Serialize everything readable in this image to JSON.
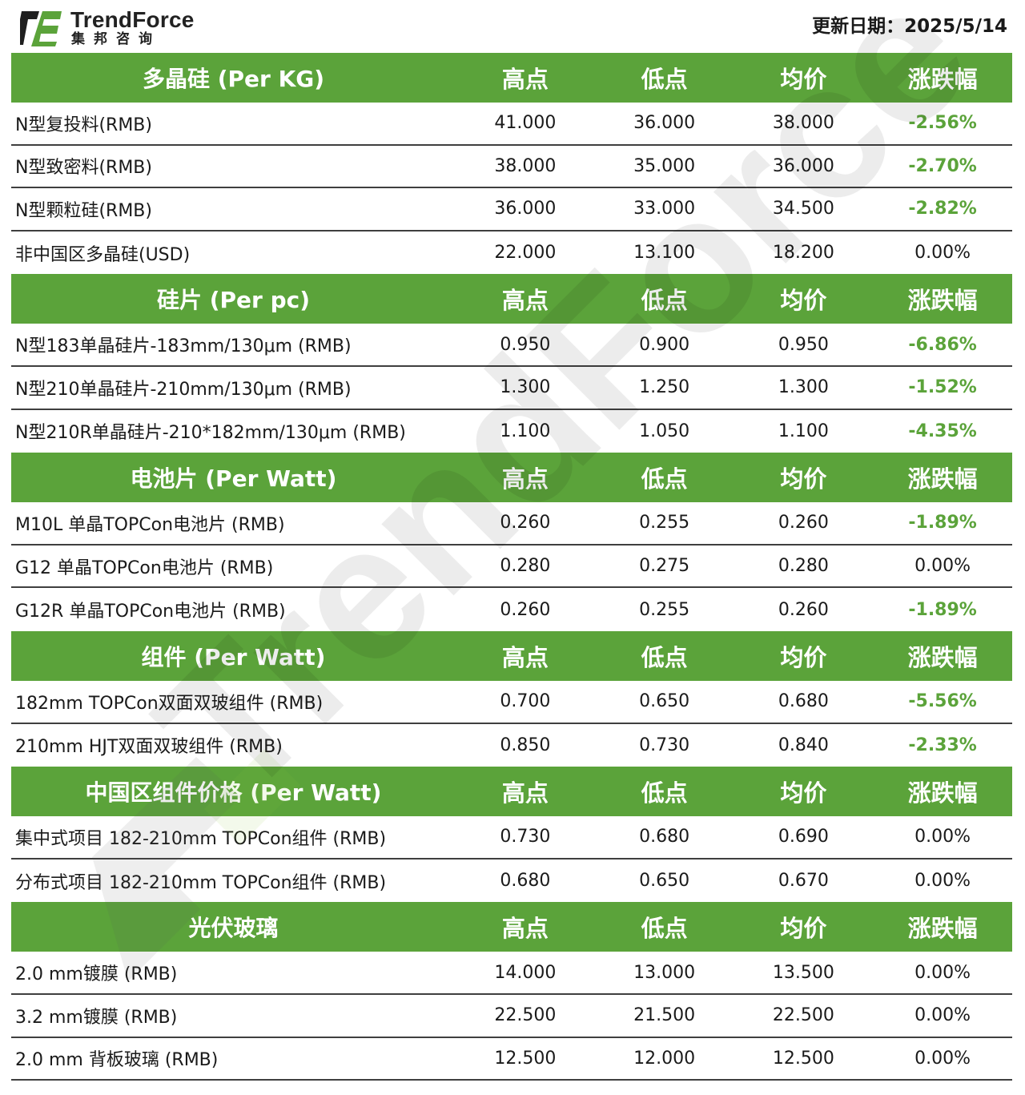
{
  "header": {
    "brand": "TrendForce",
    "brand_sub": "集邦咨询",
    "update_date": "更新日期：2025/5/14"
  },
  "colors": {
    "accent": "#5ba33a",
    "negative_change": "#5ba33a",
    "text": "#1a1a1a"
  },
  "watermark_text": "TrendForce",
  "sections": [
    {
      "title": "多晶硅 (Per KG)",
      "columns": [
        "高点",
        "低点",
        "均价",
        "涨跌幅"
      ],
      "rows": [
        {
          "name": "N型复投料(RMB)",
          "high": "41.000",
          "low": "36.000",
          "avg": "38.000",
          "change": "-2.56%"
        },
        {
          "name": "N型致密料(RMB)",
          "high": "38.000",
          "low": "35.000",
          "avg": "36.000",
          "change": "-2.70%"
        },
        {
          "name": "N型颗粒硅(RMB)",
          "high": "36.000",
          "low": "33.000",
          "avg": "34.500",
          "change": "-2.82%"
        },
        {
          "name": "非中国区多晶硅(USD)",
          "high": "22.000",
          "low": "13.100",
          "avg": "18.200",
          "change": "0.00%"
        }
      ]
    },
    {
      "title": "硅片 (Per pc)",
      "columns": [
        "高点",
        "低点",
        "均价",
        "涨跌幅"
      ],
      "rows": [
        {
          "name": "N型183单晶硅片-183mm/130μm (RMB)",
          "high": "0.950",
          "low": "0.900",
          "avg": "0.950",
          "change": "-6.86%"
        },
        {
          "name": "N型210单晶硅片-210mm/130μm (RMB)",
          "high": "1.300",
          "low": "1.250",
          "avg": "1.300",
          "change": "-1.52%"
        },
        {
          "name": "N型210R单晶硅片-210*182mm/130μm (RMB)",
          "high": "1.100",
          "low": "1.050",
          "avg": "1.100",
          "change": "-4.35%"
        }
      ]
    },
    {
      "title": "电池片 (Per Watt)",
      "columns": [
        "高点",
        "低点",
        "均价",
        "涨跌幅"
      ],
      "rows": [
        {
          "name": "M10L 单晶TOPCon电池片 (RMB)",
          "high": "0.260",
          "low": "0.255",
          "avg": "0.260",
          "change": "-1.89%"
        },
        {
          "name": "G12 单晶TOPCon电池片 (RMB)",
          "high": "0.280",
          "low": "0.275",
          "avg": "0.280",
          "change": "0.00%"
        },
        {
          "name": "G12R 单晶TOPCon电池片 (RMB)",
          "high": "0.260",
          "low": "0.255",
          "avg": "0.260",
          "change": "-1.89%"
        }
      ]
    },
    {
      "title": "组件 (Per Watt)",
      "columns": [
        "高点",
        "低点",
        "均价",
        "涨跌幅"
      ],
      "rows": [
        {
          "name": "182mm TOPCon双面双玻组件 (RMB)",
          "high": "0.700",
          "low": "0.650",
          "avg": "0.680",
          "change": "-5.56%"
        },
        {
          "name": "210mm HJT双面双玻组件 (RMB)",
          "high": "0.850",
          "low": "0.730",
          "avg": "0.840",
          "change": "-2.33%"
        }
      ]
    },
    {
      "title": "中国区组件价格 (Per Watt)",
      "columns": [
        "高点",
        "低点",
        "均价",
        "涨跌幅"
      ],
      "rows": [
        {
          "name": "集中式项目 182-210mm TOPCon组件 (RMB)",
          "high": "0.730",
          "low": "0.680",
          "avg": "0.690",
          "change": "0.00%"
        },
        {
          "name": "分布式项目 182-210mm TOPCon组件 (RMB)",
          "high": "0.680",
          "low": "0.650",
          "avg": "0.670",
          "change": "0.00%"
        }
      ]
    },
    {
      "title": "光伏玻璃",
      "columns": [
        "高点",
        "低点",
        "均价",
        "涨跌幅"
      ],
      "rows": [
        {
          "name": "2.0 mm镀膜 (RMB)",
          "high": "14.000",
          "low": "13.000",
          "avg": "13.500",
          "change": "0.00%"
        },
        {
          "name": "3.2 mm镀膜 (RMB)",
          "high": "22.500",
          "low": "21.500",
          "avg": "22.500",
          "change": "0.00%"
        },
        {
          "name": "2.0 mm 背板玻璃 (RMB)",
          "high": "12.500",
          "low": "12.000",
          "avg": "12.500",
          "change": "0.00%"
        }
      ]
    }
  ]
}
